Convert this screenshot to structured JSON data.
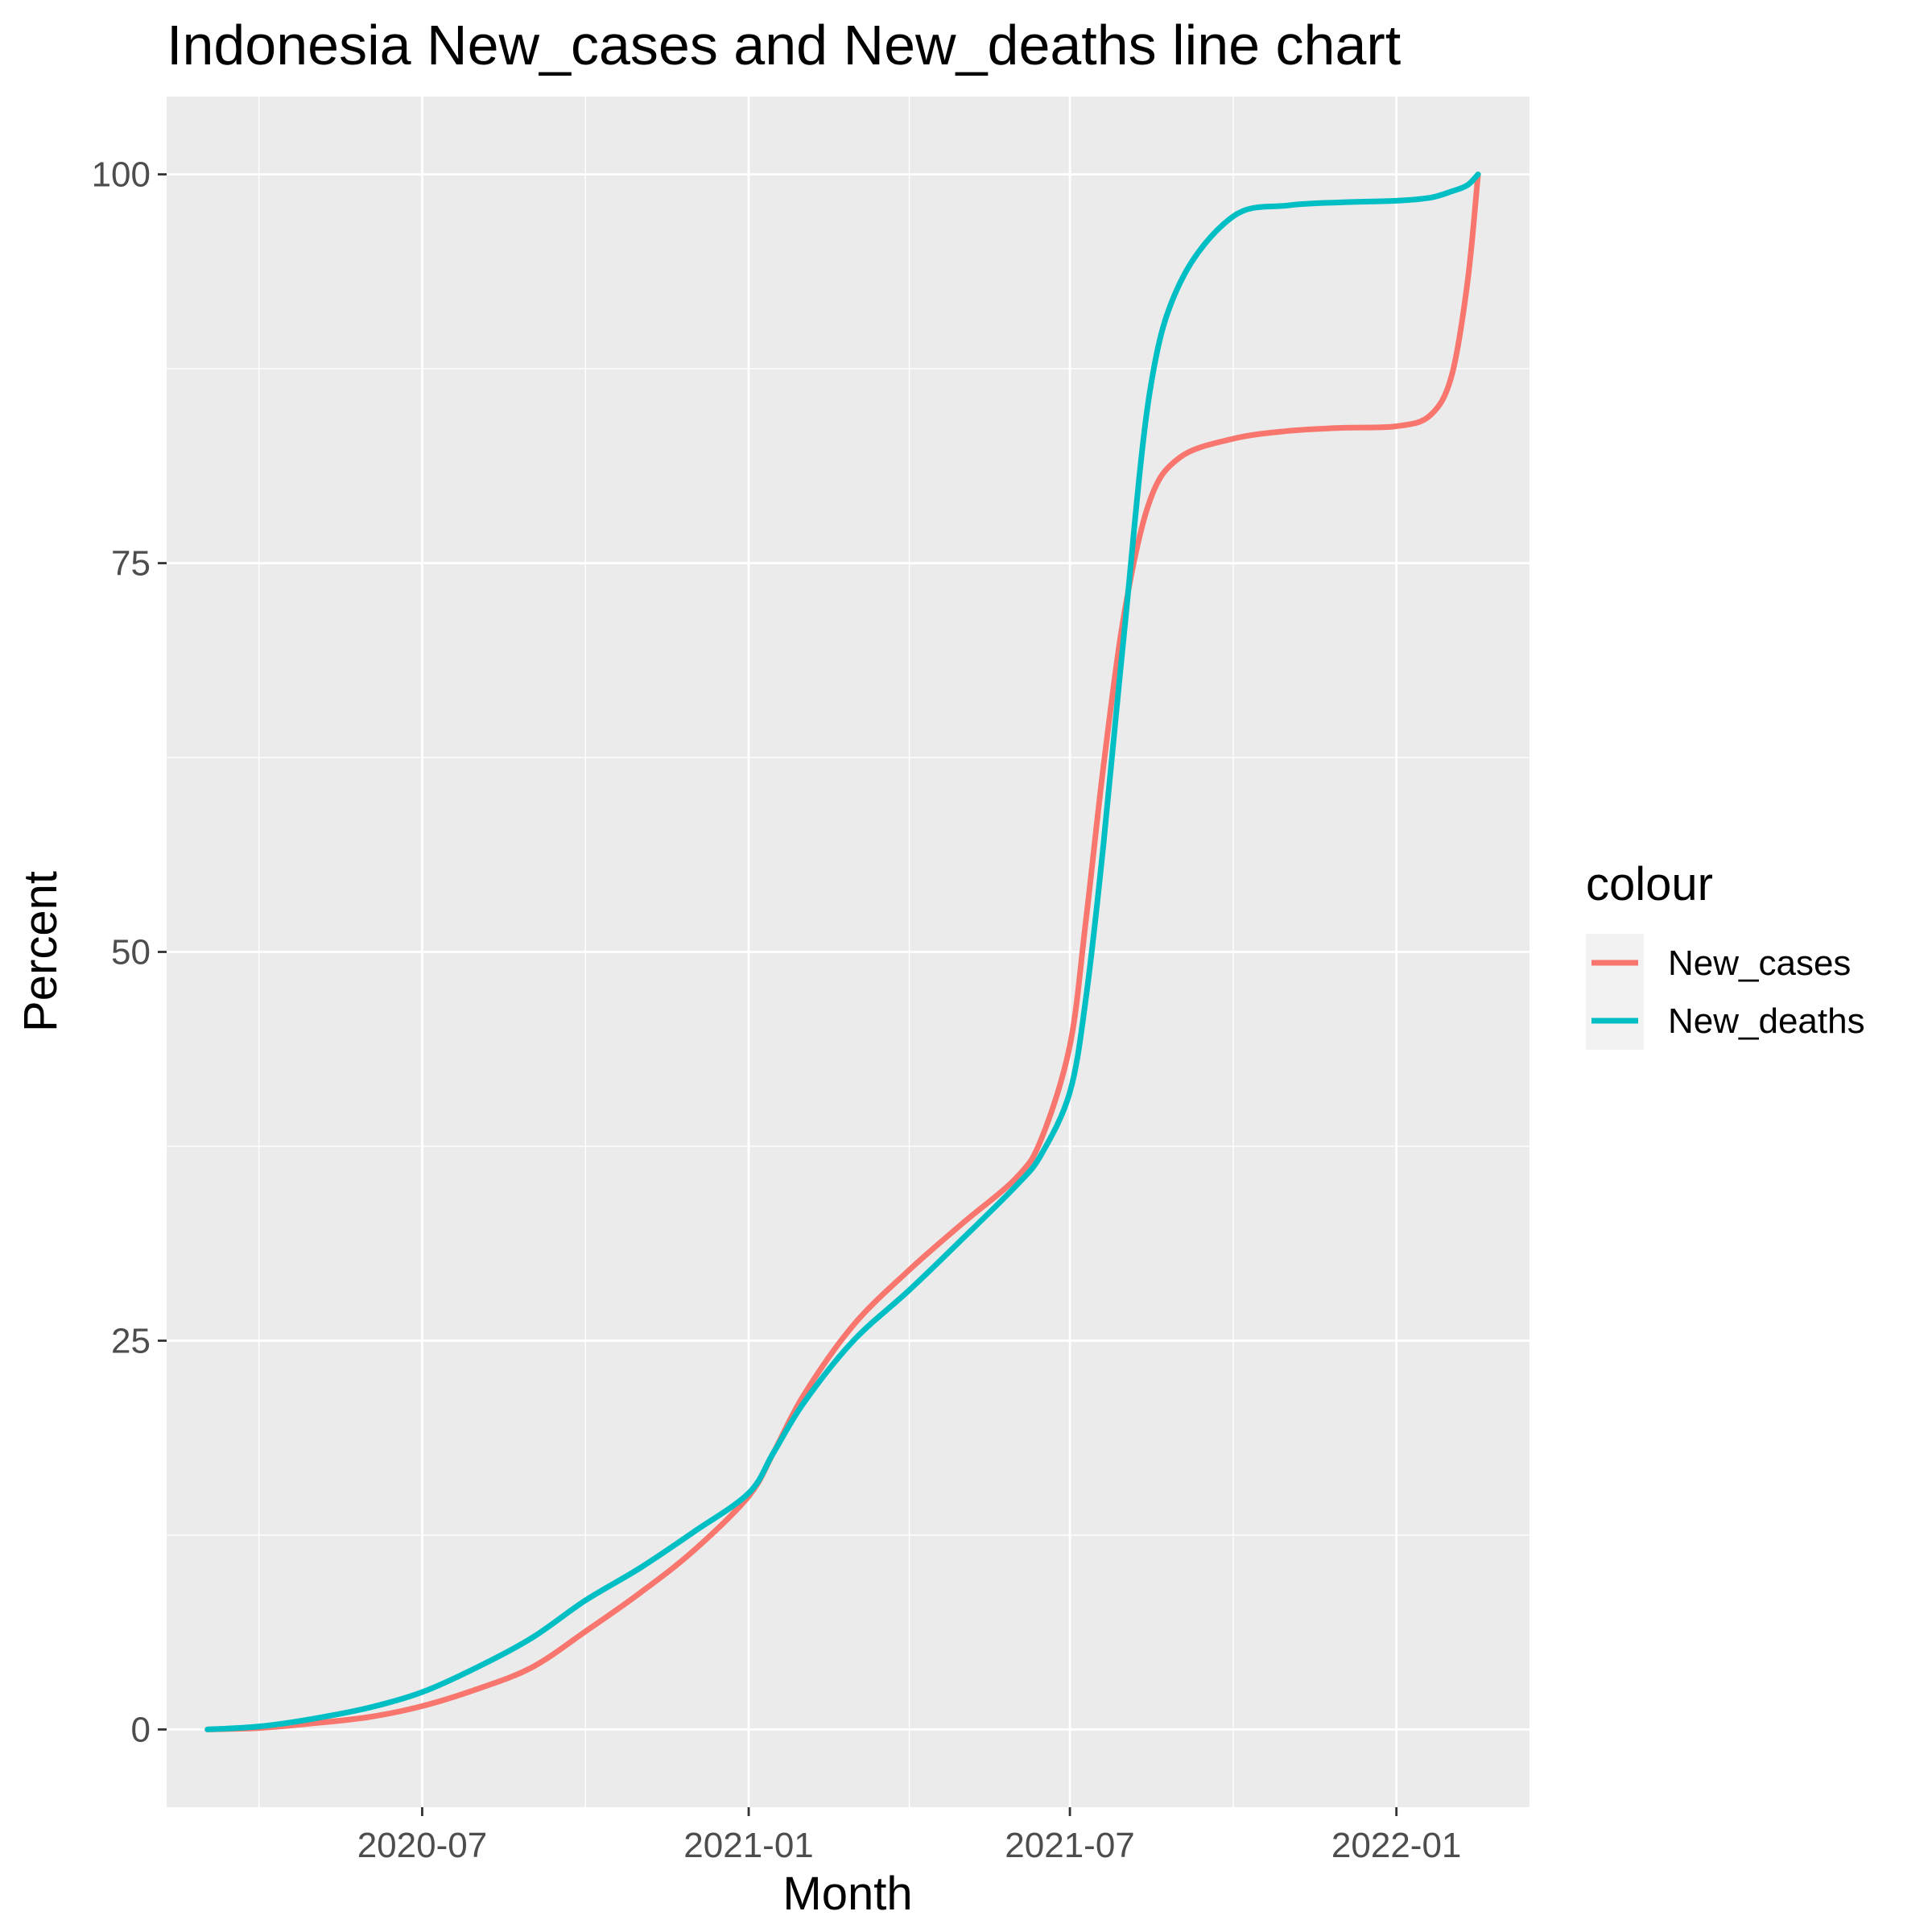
{
  "chart_data": {
    "type": "line",
    "title": "Indonesia  New_cases and New_deaths line chart",
    "xlabel": "Month",
    "ylabel": "Percent",
    "x_ticks": [
      "2020-07",
      "2021-01",
      "2021-07",
      "2022-01"
    ],
    "x_tick_dates": [
      "2020-07-01",
      "2021-01-01",
      "2021-07-01",
      "2022-01-01"
    ],
    "y_ticks": [
      0,
      25,
      50,
      75,
      100
    ],
    "xlim": [
      "2020-02-08",
      "2022-03-17"
    ],
    "ylim": [
      -5,
      105
    ],
    "grid": true,
    "background": "#ebebeb",
    "legend": {
      "title": "colour",
      "position": "right",
      "entries": [
        "New_cases",
        "New_deaths"
      ]
    },
    "series": [
      {
        "name": "New_cases",
        "color": "#f8766d",
        "points": [
          [
            "2020-03-02",
            0
          ],
          [
            "2020-04-01",
            0.1
          ],
          [
            "2020-05-01",
            0.4
          ],
          [
            "2020-06-01",
            0.8
          ],
          [
            "2020-07-01",
            1.5
          ],
          [
            "2020-08-01",
            2.6
          ],
          [
            "2020-09-01",
            4.0
          ],
          [
            "2020-10-01",
            6.3
          ],
          [
            "2020-11-01",
            8.8
          ],
          [
            "2020-12-01",
            11.5
          ],
          [
            "2021-01-01",
            15.0
          ],
          [
            "2021-01-15",
            17.8
          ],
          [
            "2021-02-01",
            21.5
          ],
          [
            "2021-03-01",
            26.0
          ],
          [
            "2021-04-01",
            29.5
          ],
          [
            "2021-05-01",
            32.5
          ],
          [
            "2021-06-01",
            35.5
          ],
          [
            "2021-06-15",
            38.0
          ],
          [
            "2021-07-01",
            44.0
          ],
          [
            "2021-07-10",
            52.0
          ],
          [
            "2021-07-20",
            62.0
          ],
          [
            "2021-08-01",
            72.0
          ],
          [
            "2021-08-15",
            79.0
          ],
          [
            "2021-09-01",
            81.8
          ],
          [
            "2021-10-01",
            83.0
          ],
          [
            "2021-11-01",
            83.5
          ],
          [
            "2021-12-01",
            83.7
          ],
          [
            "2022-01-01",
            83.8
          ],
          [
            "2022-01-20",
            84.5
          ],
          [
            "2022-02-01",
            87.0
          ],
          [
            "2022-02-10",
            93.0
          ],
          [
            "2022-02-16",
            100.0
          ]
        ]
      },
      {
        "name": "New_deaths",
        "color": "#00bfc4",
        "points": [
          [
            "2020-03-02",
            0
          ],
          [
            "2020-04-01",
            0.2
          ],
          [
            "2020-05-01",
            0.7
          ],
          [
            "2020-06-01",
            1.4
          ],
          [
            "2020-07-01",
            2.4
          ],
          [
            "2020-08-01",
            4.0
          ],
          [
            "2020-09-01",
            5.9
          ],
          [
            "2020-10-01",
            8.3
          ],
          [
            "2020-11-01",
            10.4
          ],
          [
            "2020-12-01",
            12.7
          ],
          [
            "2021-01-01",
            15.2
          ],
          [
            "2021-01-15",
            17.8
          ],
          [
            "2021-02-01",
            21.0
          ],
          [
            "2021-03-01",
            25.0
          ],
          [
            "2021-04-01",
            28.2
          ],
          [
            "2021-05-01",
            31.5
          ],
          [
            "2021-06-01",
            35.0
          ],
          [
            "2021-06-15",
            37.0
          ],
          [
            "2021-07-01",
            41.0
          ],
          [
            "2021-07-10",
            47.0
          ],
          [
            "2021-07-20",
            57.0
          ],
          [
            "2021-08-01",
            71.0
          ],
          [
            "2021-08-15",
            86.0
          ],
          [
            "2021-09-01",
            93.0
          ],
          [
            "2021-10-01",
            97.3
          ],
          [
            "2021-11-01",
            98.0
          ],
          [
            "2021-12-01",
            98.2
          ],
          [
            "2022-01-01",
            98.3
          ],
          [
            "2022-01-20",
            98.5
          ],
          [
            "2022-02-01",
            98.9
          ],
          [
            "2022-02-10",
            99.3
          ],
          [
            "2022-02-16",
            100.0
          ]
        ]
      }
    ]
  }
}
